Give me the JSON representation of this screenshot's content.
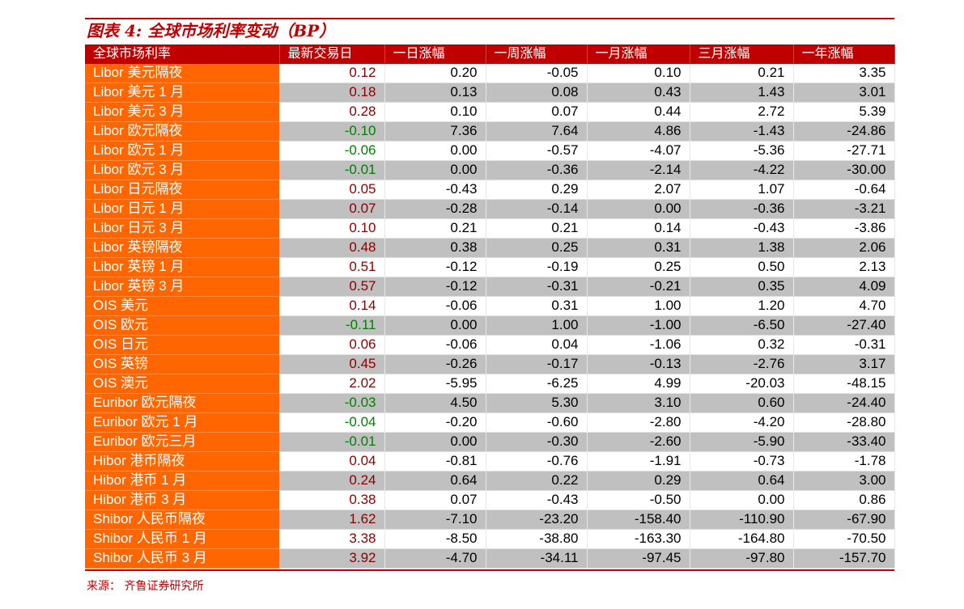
{
  "title": "图表 4:  全球市场利率变动（BP）",
  "headers": [
    "全球市场利率",
    "最新交易日",
    "一日涨幅",
    "一周涨幅",
    "一月涨幅",
    "三月涨幅",
    "一年涨幅"
  ],
  "colors": {
    "header": "#c00000",
    "name_column": "#ff6600",
    "positive_latest": "#8b0000",
    "negative_latest": "#008000",
    "alt_row": "#c0c0c0"
  },
  "rows": [
    [
      "Libor 美元隔夜",
      "0.12",
      "0.20",
      "-0.05",
      "0.10",
      "0.21",
      "3.35"
    ],
    [
      "Libor 美元 1 月",
      "0.18",
      "0.13",
      "0.08",
      "0.43",
      "1.43",
      "3.01"
    ],
    [
      "Libor 美元 3 月",
      "0.28",
      "0.10",
      "0.07",
      "0.44",
      "2.72",
      "5.39"
    ],
    [
      "Libor 欧元隔夜",
      "-0.10",
      "7.36",
      "7.64",
      "4.86",
      "-1.43",
      "-24.86"
    ],
    [
      "Libor 欧元 1 月",
      "-0.06",
      "0.00",
      "-0.57",
      "-4.07",
      "-5.36",
      "-27.71"
    ],
    [
      "Libor 欧元 3 月",
      "-0.01",
      "0.00",
      "-0.36",
      "-2.14",
      "-4.22",
      "-30.00"
    ],
    [
      "Libor 日元隔夜",
      "0.05",
      "-0.43",
      "0.29",
      "2.07",
      "1.07",
      "-0.64"
    ],
    [
      "Libor 日元 1 月",
      "0.07",
      "-0.28",
      "-0.14",
      "0.00",
      "-0.36",
      "-3.21"
    ],
    [
      "Libor 日元 3 月",
      "0.10",
      "0.21",
      "0.21",
      "0.14",
      "-0.43",
      "-3.86"
    ],
    [
      "Libor 英镑隔夜",
      "0.48",
      "0.38",
      "0.25",
      "0.31",
      "1.38",
      "2.06"
    ],
    [
      "Libor 英镑 1 月",
      "0.51",
      "-0.12",
      "-0.19",
      "0.25",
      "0.50",
      "2.13"
    ],
    [
      "Libor 英镑 3 月",
      "0.57",
      "-0.12",
      "-0.31",
      "-0.21",
      "0.35",
      "4.09"
    ],
    [
      "OIS 美元",
      "0.14",
      "-0.06",
      "0.31",
      "1.00",
      "1.20",
      "4.70"
    ],
    [
      "OIS 欧元",
      "-0.11",
      "0.00",
      "1.00",
      "-1.00",
      "-6.50",
      "-27.40"
    ],
    [
      "OIS 日元",
      "0.06",
      "-0.06",
      "0.04",
      "-1.06",
      "0.32",
      "-0.31"
    ],
    [
      "OIS 英镑",
      "0.45",
      "-0.26",
      "-0.17",
      "-0.13",
      "-2.76",
      "3.17"
    ],
    [
      "OIS 澳元",
      "2.02",
      "-5.95",
      "-6.25",
      "4.99",
      "-20.03",
      "-48.15"
    ],
    [
      "Euribor 欧元隔夜",
      "-0.03",
      "4.50",
      "5.30",
      "3.10",
      "0.60",
      "-24.40"
    ],
    [
      "Euribor 欧元 1 月",
      "-0.04",
      "-0.20",
      "-0.60",
      "-2.80",
      "-4.20",
      "-28.80"
    ],
    [
      "Euribor 欧元三月",
      "-0.01",
      "0.00",
      "-0.30",
      "-2.60",
      "-5.90",
      "-33.40"
    ],
    [
      "Hibor 港币隔夜",
      "0.04",
      "-0.81",
      "-0.76",
      "-1.91",
      "-0.73",
      "-1.78"
    ],
    [
      "Hibor 港币 1 月",
      "0.24",
      "0.64",
      "0.22",
      "0.29",
      "0.64",
      "3.00"
    ],
    [
      "Hibor 港币 3 月",
      "0.38",
      "0.07",
      "-0.43",
      "-0.50",
      "0.00",
      "0.86"
    ],
    [
      "Shibor 人民币隔夜",
      "1.62",
      "-7.10",
      "-23.20",
      "-158.40",
      "-110.90",
      "-67.90"
    ],
    [
      "Shibor 人民币 1 月",
      "3.38",
      "-8.50",
      "-38.80",
      "-163.30",
      "-164.80",
      "-70.50"
    ],
    [
      "Shibor 人民币 3 月",
      "3.92",
      "-4.70",
      "-34.11",
      "-97.45",
      "-97.80",
      "-157.70"
    ]
  ],
  "source": "来源：  齐鲁证券研究所"
}
